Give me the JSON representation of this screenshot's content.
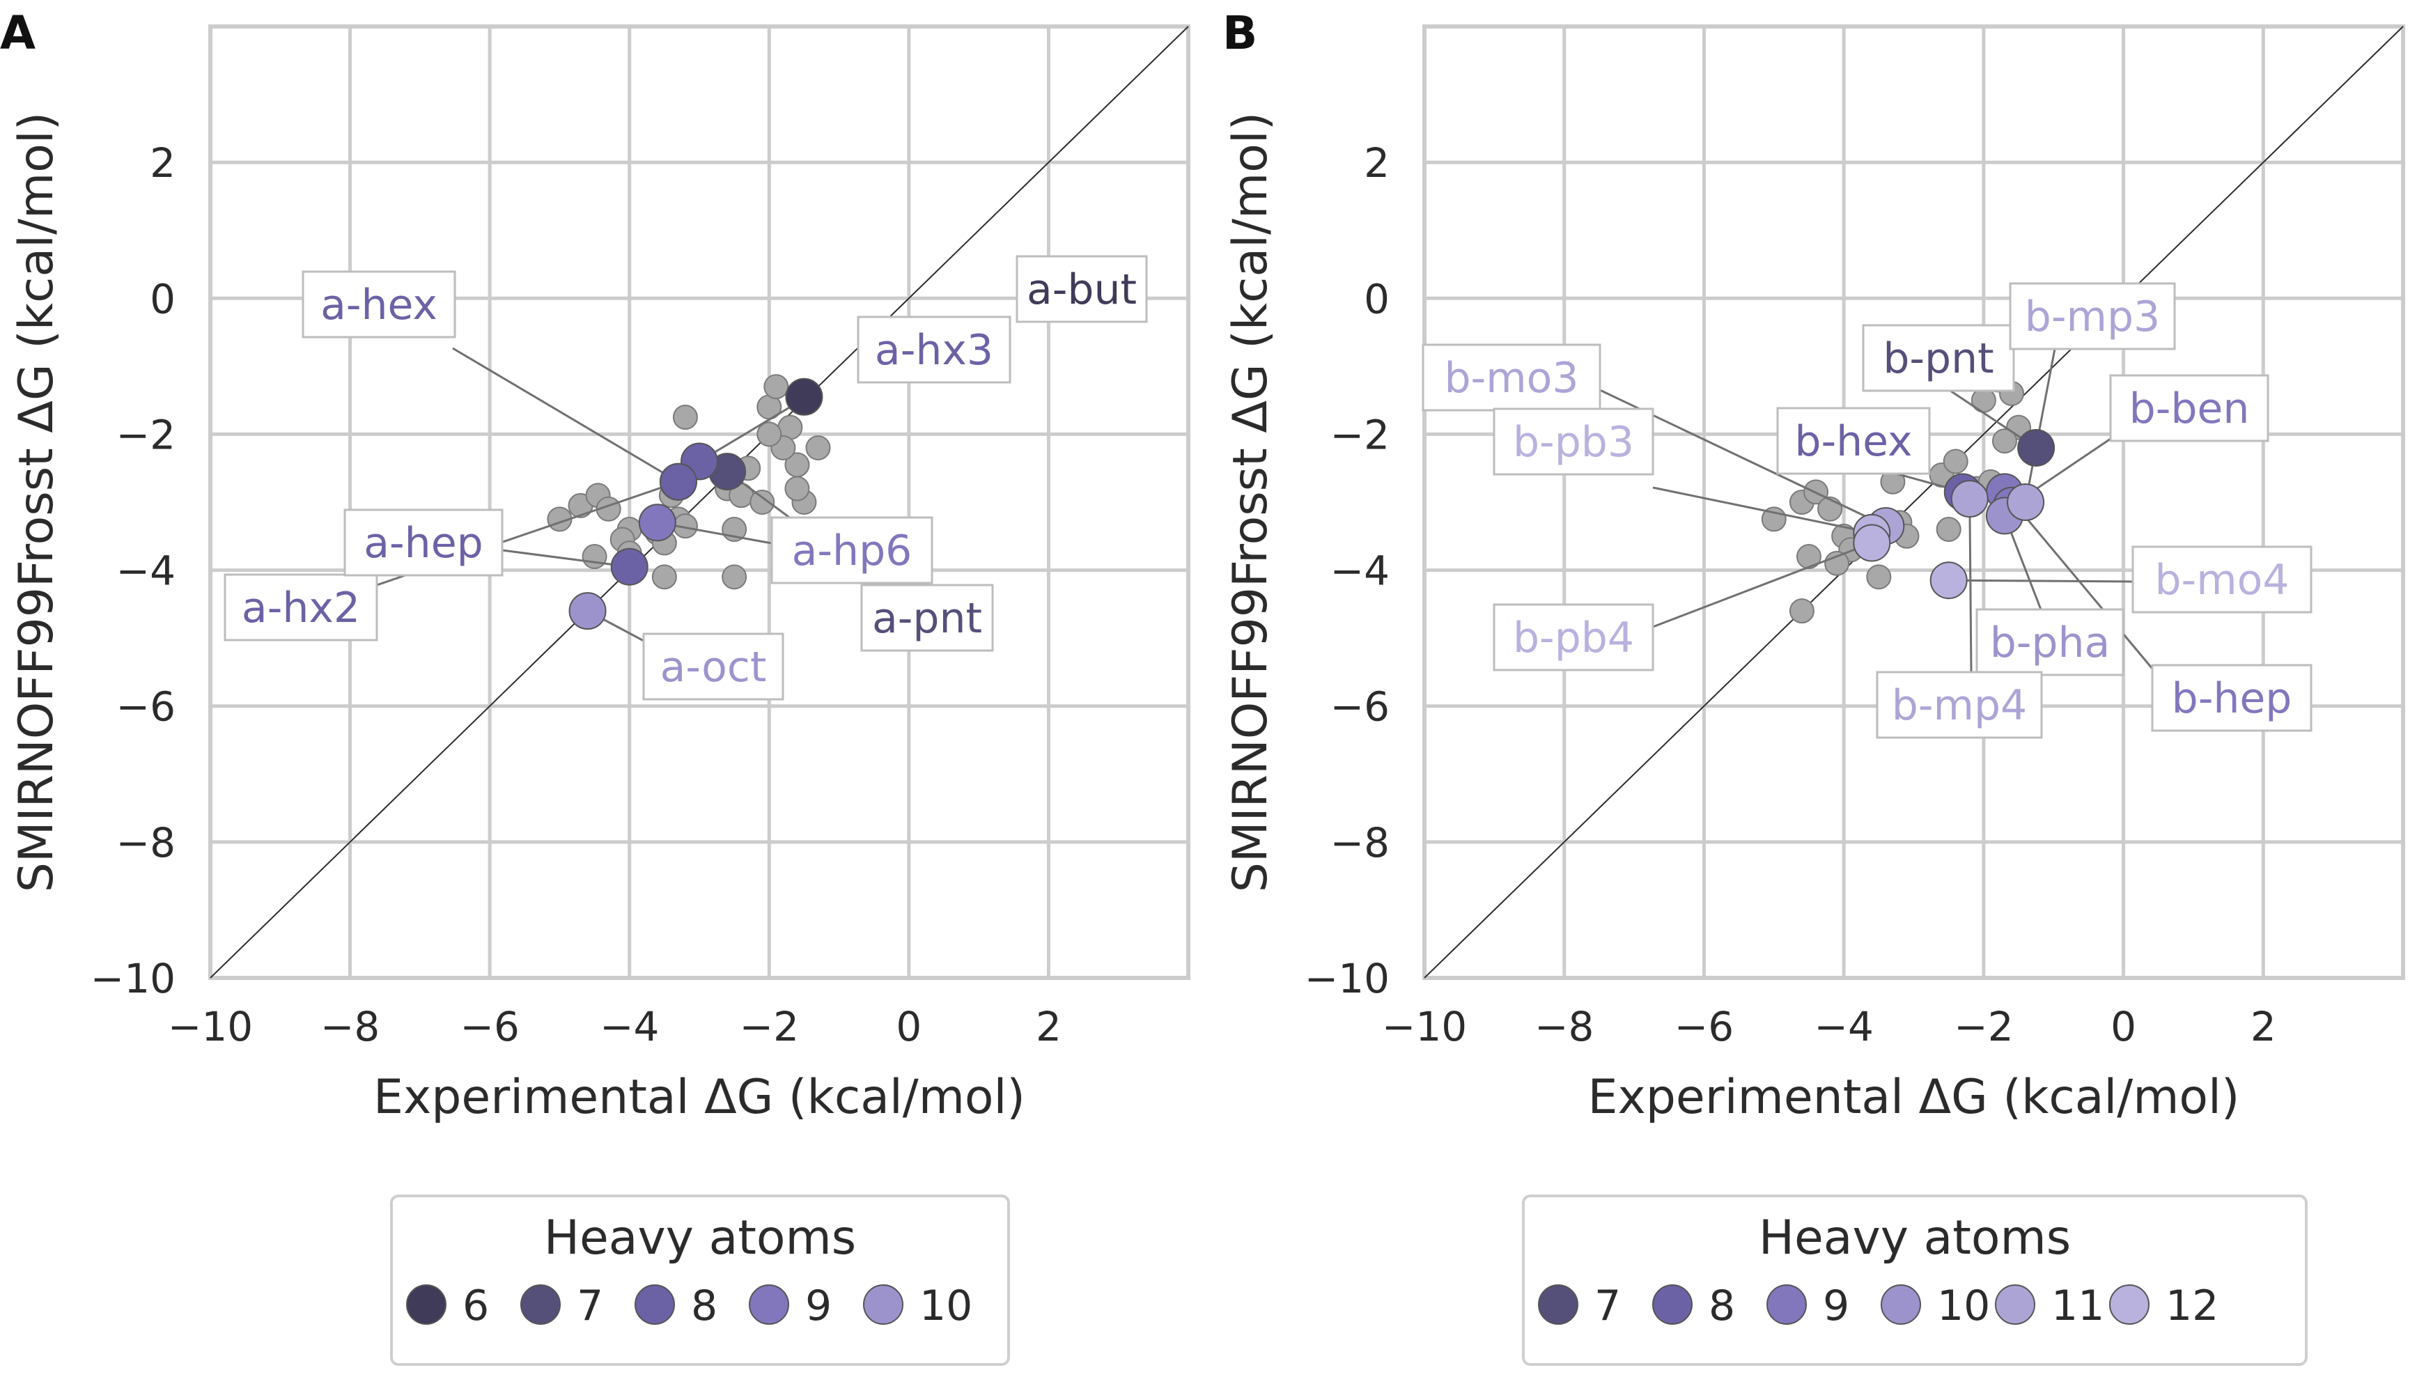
{
  "chart_data": [
    {
      "type": "scatter",
      "panel_label": "A",
      "xlabel": "Experimental ΔG (kcal/mol)",
      "ylabel": "SMIRNOFF99Frosst ΔG (kcal/mol)",
      "xlim": [
        -10,
        4
      ],
      "ylim": [
        -10,
        4
      ],
      "x_ticks": [
        -10,
        -8,
        -6,
        -4,
        -2,
        0,
        2
      ],
      "y_ticks": [
        -10,
        -8,
        -6,
        -4,
        -2,
        0,
        2
      ],
      "tick_labels": [
        "−10",
        "−8",
        "−6",
        "−4",
        "−2",
        "0",
        "2"
      ],
      "grid": true,
      "diagonal": true,
      "background_points": [
        [
          -5.0,
          -3.25
        ],
        [
          -4.7,
          -3.05
        ],
        [
          -4.45,
          -2.9
        ],
        [
          -4.3,
          -3.1
        ],
        [
          -4.0,
          -3.4
        ],
        [
          -4.1,
          -3.55
        ],
        [
          -4.0,
          -3.75
        ],
        [
          -4.5,
          -3.8
        ],
        [
          -3.6,
          -3.45
        ],
        [
          -3.5,
          -3.6
        ],
        [
          -3.3,
          -3.25
        ],
        [
          -3.2,
          -3.35
        ],
        [
          -3.4,
          -2.9
        ],
        [
          -3.2,
          -1.75
        ],
        [
          -3.5,
          -4.1
        ],
        [
          -2.6,
          -2.8
        ],
        [
          -2.4,
          -2.9
        ],
        [
          -2.1,
          -3.0
        ],
        [
          -2.5,
          -3.4
        ],
        [
          -2.5,
          -4.1
        ],
        [
          -2.3,
          -2.5
        ],
        [
          -2.0,
          -1.6
        ],
        [
          -1.9,
          -1.3
        ],
        [
          -1.7,
          -1.9
        ],
        [
          -1.6,
          -2.45
        ],
        [
          -1.5,
          -3.0
        ],
        [
          -1.6,
          -2.8
        ],
        [
          -1.3,
          -2.2
        ],
        [
          -1.8,
          -2.2
        ],
        [
          -2.0,
          -2.0
        ]
      ],
      "points": [
        {
          "label": "a-but",
          "x": -1.5,
          "y": -1.45,
          "heavy_atoms": 6
        },
        {
          "label": "a-pnt",
          "x": -2.6,
          "y": -2.55,
          "heavy_atoms": 7
        },
        {
          "label": "a-hx3",
          "x": -3.0,
          "y": -2.4,
          "heavy_atoms": 8
        },
        {
          "label": "a-hex",
          "x": -3.3,
          "y": -2.7,
          "heavy_atoms": 8
        },
        {
          "label": "a-hx2",
          "x": -3.3,
          "y": -2.7,
          "heavy_atoms": 8
        },
        {
          "label": "a-hp6",
          "x": -3.6,
          "y": -3.3,
          "heavy_atoms": 9
        },
        {
          "label": "a-hep",
          "x": -4.0,
          "y": -3.95,
          "heavy_atoms": 8
        },
        {
          "label": "a-oct",
          "x": -4.6,
          "y": -4.6,
          "heavy_atoms": 10
        }
      ],
      "legend": {
        "title": "Heavy atoms",
        "entries": [
          "6",
          "7",
          "8",
          "9",
          "10"
        ],
        "position": "bottom"
      }
    },
    {
      "type": "scatter",
      "panel_label": "B",
      "xlabel": "Experimental ΔG (kcal/mol)",
      "ylabel": "SMIRNOFF99Frosst ΔG (kcal/mol)",
      "xlim": [
        -10,
        4
      ],
      "ylim": [
        -10,
        4
      ],
      "x_ticks": [
        -10,
        -8,
        -6,
        -4,
        -2,
        0,
        2
      ],
      "y_ticks": [
        -10,
        -8,
        -6,
        -4,
        -2,
        0,
        2
      ],
      "tick_labels": [
        "−10",
        "−8",
        "−6",
        "−4",
        "−2",
        "0",
        "2"
      ],
      "grid": true,
      "diagonal": true,
      "background_points": [
        [
          -5.0,
          -3.25
        ],
        [
          -4.6,
          -3.0
        ],
        [
          -4.4,
          -2.85
        ],
        [
          -4.2,
          -3.1
        ],
        [
          -4.0,
          -3.5
        ],
        [
          -3.9,
          -3.7
        ],
        [
          -4.1,
          -3.9
        ],
        [
          -4.5,
          -3.8
        ],
        [
          -3.6,
          -3.4
        ],
        [
          -3.2,
          -3.3
        ],
        [
          -3.1,
          -3.5
        ],
        [
          -3.3,
          -2.7
        ],
        [
          -3.2,
          -1.8
        ],
        [
          -3.5,
          -4.1
        ],
        [
          -4.6,
          -4.6
        ],
        [
          -2.6,
          -2.6
        ],
        [
          -2.4,
          -2.4
        ],
        [
          -2.5,
          -3.4
        ],
        [
          -2.1,
          -2.8
        ],
        [
          -2.0,
          -1.5
        ],
        [
          -1.8,
          -1.2
        ],
        [
          -1.6,
          -1.4
        ],
        [
          -1.5,
          -1.9
        ],
        [
          -1.7,
          -2.1
        ],
        [
          -1.9,
          -2.7
        ]
      ],
      "points": [
        {
          "label": "b-pnt",
          "x": -1.25,
          "y": -2.2,
          "heavy_atoms": 7
        },
        {
          "label": "b-hex",
          "x": -2.3,
          "y": -2.85,
          "heavy_atoms": 8
        },
        {
          "label": "b-hep",
          "x": -1.7,
          "y": -2.85,
          "heavy_atoms": 9
        },
        {
          "label": "b-ben",
          "x": -1.6,
          "y": -3.05,
          "heavy_atoms": 9
        },
        {
          "label": "b-pha",
          "x": -1.7,
          "y": -3.2,
          "heavy_atoms": 10
        },
        {
          "label": "b-mp3",
          "x": -1.4,
          "y": -3.0,
          "heavy_atoms": 11
        },
        {
          "label": "b-mp4",
          "x": -2.2,
          "y": -2.95,
          "heavy_atoms": 11
        },
        {
          "label": "b-mo3",
          "x": -3.4,
          "y": -3.35,
          "heavy_atoms": 11
        },
        {
          "label": "b-mo4",
          "x": -2.5,
          "y": -4.15,
          "heavy_atoms": 12
        },
        {
          "label": "b-pb3",
          "x": -3.6,
          "y": -3.45,
          "heavy_atoms": 12
        },
        {
          "label": "b-pb4",
          "x": -3.6,
          "y": -3.6,
          "heavy_atoms": 12
        }
      ],
      "legend": {
        "title": "Heavy atoms",
        "entries": [
          "7",
          "8",
          "9",
          "10",
          "11",
          "12"
        ],
        "position": "bottom"
      }
    }
  ],
  "colors": {
    "6": "#403b59",
    "7": "#55507a",
    "8": "#6b62a6",
    "9": "#8277bd",
    "10": "#9d93cc",
    "11": "#ada4d6",
    "12": "#b9b1de",
    "background_point": "#a8a8a8",
    "grid": "#cccccc"
  }
}
